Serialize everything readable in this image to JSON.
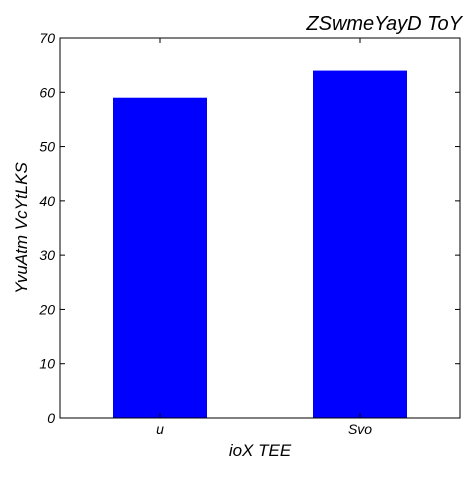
{
  "chart_data": {
    "type": "bar",
    "title": "ZSwmeYayD ToY",
    "xlabel": "ioX TEE",
    "ylabel": "YvuAtm VcYtLKS",
    "categories": [
      "u",
      "Svo"
    ],
    "values": [
      59,
      64
    ],
    "ylim": [
      0,
      70
    ],
    "yticks": [
      0,
      10,
      20,
      30,
      40,
      50,
      60,
      70
    ],
    "grid": false,
    "legend": "none",
    "bar_color": "#0000ff"
  }
}
